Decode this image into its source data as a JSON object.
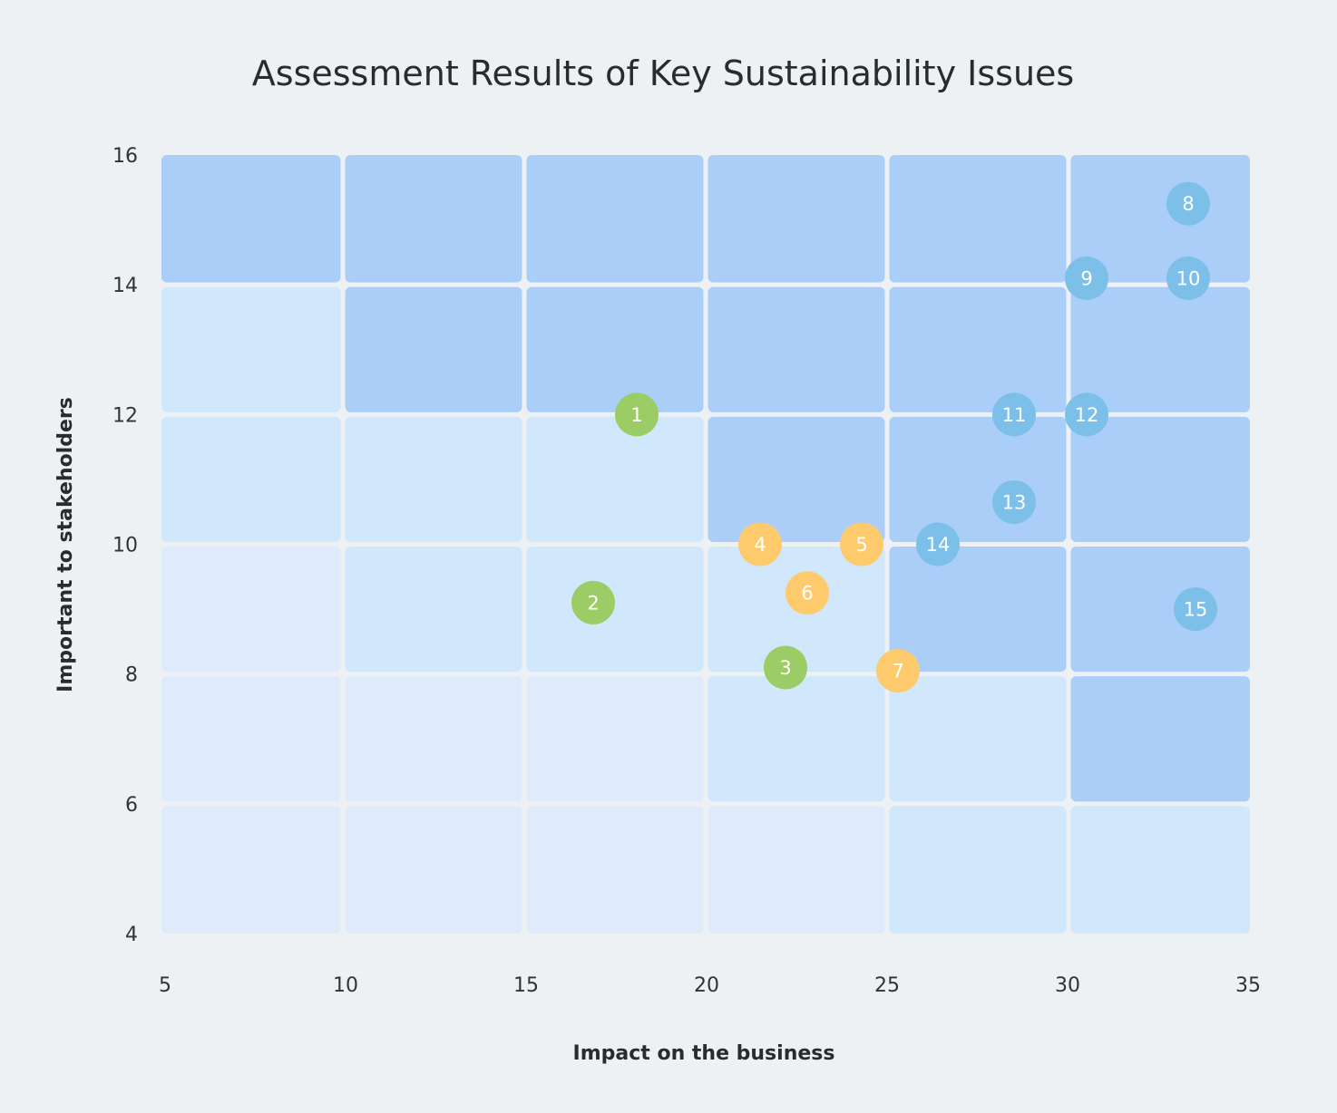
{
  "chart_data": {
    "type": "scatter",
    "title": "Assessment Results of Key Sustainability Issues",
    "xlabel": "Impact on the business",
    "ylabel": "Important to stakeholders",
    "xlim": [
      5,
      35
    ],
    "ylim": [
      4,
      16
    ],
    "x_ticks": [
      "5",
      "10",
      "15",
      "20",
      "25",
      "30",
      "35"
    ],
    "y_ticks": [
      "4",
      "6",
      "8",
      "10",
      "12",
      "14",
      "16"
    ],
    "grid": {
      "x_edges": [
        5,
        10,
        15,
        20,
        25,
        30,
        35
      ],
      "y_edges": [
        4,
        6,
        8,
        10,
        12,
        14,
        16
      ],
      "levels": [
        [
          3,
          3,
          3,
          3,
          3,
          3
        ],
        [
          1,
          3,
          3,
          3,
          3,
          3
        ],
        [
          1,
          1,
          1,
          3,
          3,
          3
        ],
        [
          0,
          1,
          1,
          1,
          3,
          3
        ],
        [
          0,
          0,
          0,
          1,
          1,
          3
        ],
        [
          0,
          0,
          0,
          0,
          1,
          1
        ]
      ],
      "level_colors": [
        "#dfebfb",
        "#d0e7fc",
        "#bfdbfb",
        "#abcef8"
      ]
    },
    "group_colors": {
      "green": "#9ccc65",
      "orange": "#ffca6b",
      "blue": "#7cbfe8"
    },
    "points": [
      {
        "label": "1",
        "x": 18.1,
        "y": 12.0,
        "group": "green"
      },
      {
        "label": "2",
        "x": 16.9,
        "y": 9.1,
        "group": "green"
      },
      {
        "label": "3",
        "x": 22.2,
        "y": 8.1,
        "group": "green"
      },
      {
        "label": "4",
        "x": 21.5,
        "y": 10.0,
        "group": "orange"
      },
      {
        "label": "5",
        "x": 24.3,
        "y": 10.0,
        "group": "orange"
      },
      {
        "label": "6",
        "x": 22.8,
        "y": 9.25,
        "group": "orange"
      },
      {
        "label": "7",
        "x": 25.3,
        "y": 8.05,
        "group": "orange"
      },
      {
        "label": "8",
        "x": 33.3,
        "y": 15.25,
        "group": "blue"
      },
      {
        "label": "9",
        "x": 30.5,
        "y": 14.1,
        "group": "blue"
      },
      {
        "label": "10",
        "x": 33.3,
        "y": 14.1,
        "group": "blue"
      },
      {
        "label": "11",
        "x": 28.5,
        "y": 12.0,
        "group": "blue"
      },
      {
        "label": "12",
        "x": 30.5,
        "y": 12.0,
        "group": "blue"
      },
      {
        "label": "13",
        "x": 28.5,
        "y": 10.65,
        "group": "blue"
      },
      {
        "label": "14",
        "x": 26.4,
        "y": 10.0,
        "group": "blue"
      },
      {
        "label": "15",
        "x": 33.5,
        "y": 9.0,
        "group": "blue"
      }
    ]
  }
}
